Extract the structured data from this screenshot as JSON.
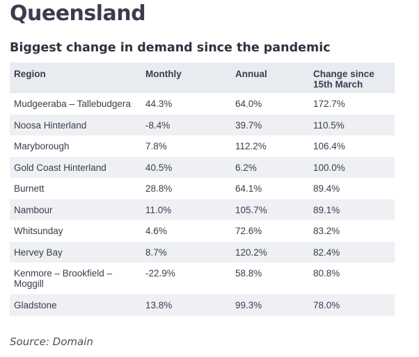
{
  "title": "Queensland",
  "table": {
    "caption": "Biggest change in demand since the pandemic",
    "headers": [
      "Region",
      "Monthly",
      "Annual",
      "Change since 15th March"
    ],
    "rows": [
      {
        "region": "Mudgeeraba – Tallebudgera",
        "monthly": "44.3%",
        "annual": "64.0%",
        "change": "172.7%"
      },
      {
        "region": "Noosa Hinterland",
        "monthly": "-8.4%",
        "annual": "39.7%",
        "change": "110.5%"
      },
      {
        "region": "Maryborough",
        "monthly": "7.8%",
        "annual": "112.2%",
        "change": "106.4%"
      },
      {
        "region": "Gold Coast Hinterland",
        "monthly": "40.5%",
        "annual": "6.2%",
        "change": "100.0%"
      },
      {
        "region": "Burnett",
        "monthly": "28.8%",
        "annual": "64.1%",
        "change": "89.4%"
      },
      {
        "region": "Nambour",
        "monthly": "11.0%",
        "annual": "105.7%",
        "change": "89.1%"
      },
      {
        "region": "Whitsunday",
        "monthly": "4.6%",
        "annual": "72.6%",
        "change": "83.2%"
      },
      {
        "region": "Hervey Bay",
        "monthly": "8.7%",
        "annual": "120.2%",
        "change": "82.4%"
      },
      {
        "region": "Kenmore – Brookfield – Moggill",
        "monthly": "-22.9%",
        "annual": "58.8%",
        "change": "80.8%"
      },
      {
        "region": "Gladstone",
        "monthly": "13.8%",
        "annual": "99.3%",
        "change": "78.0%"
      }
    ]
  },
  "source": "Source: Domain"
}
